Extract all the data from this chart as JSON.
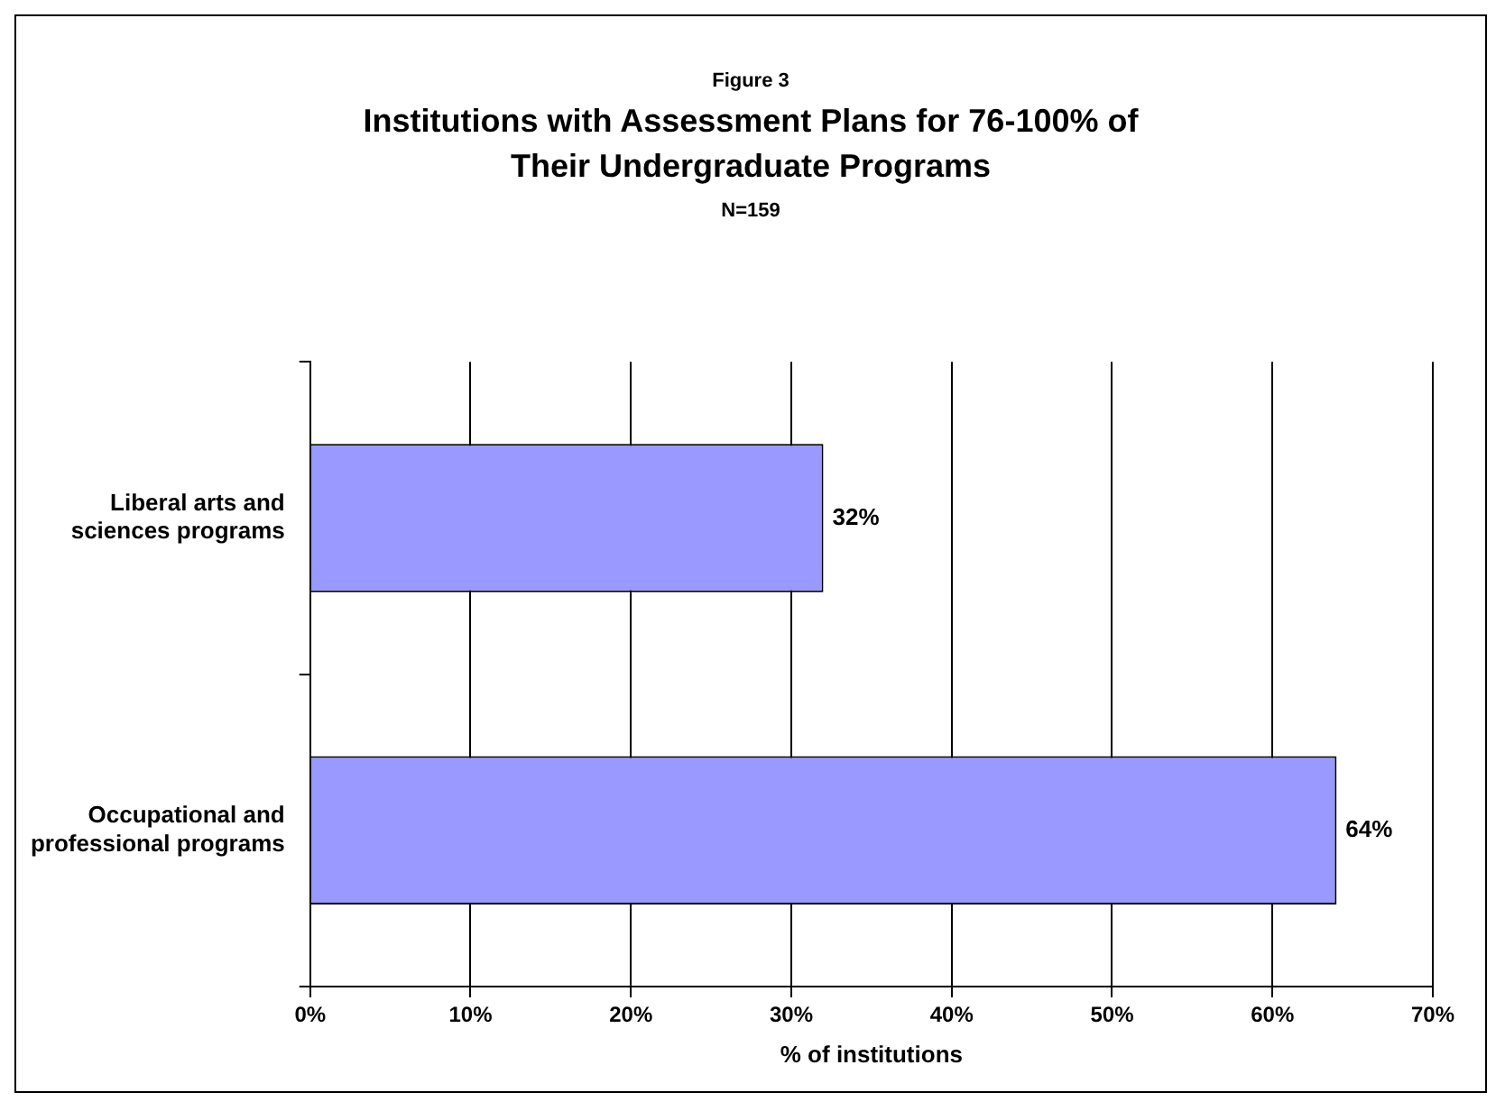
{
  "chart_data": {
    "type": "bar",
    "orientation": "horizontal",
    "annotations": [
      "Figure 3"
    ],
    "title": "Institutions with Assessment Plans for 76-100% of Their Undergraduate Programs",
    "subtitle": "N=159",
    "xlabel": "% of institutions",
    "categories": [
      "Liberal arts and sciences programs",
      "Occupational and professional programs"
    ],
    "values": [
      32,
      64
    ],
    "color": "#9999ff",
    "value_labels": [
      "32%",
      "64%"
    ],
    "xlim": [
      0,
      70
    ],
    "xticks": [
      {
        "value": 0,
        "label": "0%"
      },
      {
        "value": 10,
        "label": "10%"
      },
      {
        "value": 20,
        "label": "20%"
      },
      {
        "value": 30,
        "label": "30%"
      },
      {
        "value": 40,
        "label": "40%"
      },
      {
        "value": 50,
        "label": "50%"
      },
      {
        "value": 60,
        "label": "60%"
      },
      {
        "value": 70,
        "label": "70%"
      }
    ],
    "grid": "x",
    "legend": false
  }
}
